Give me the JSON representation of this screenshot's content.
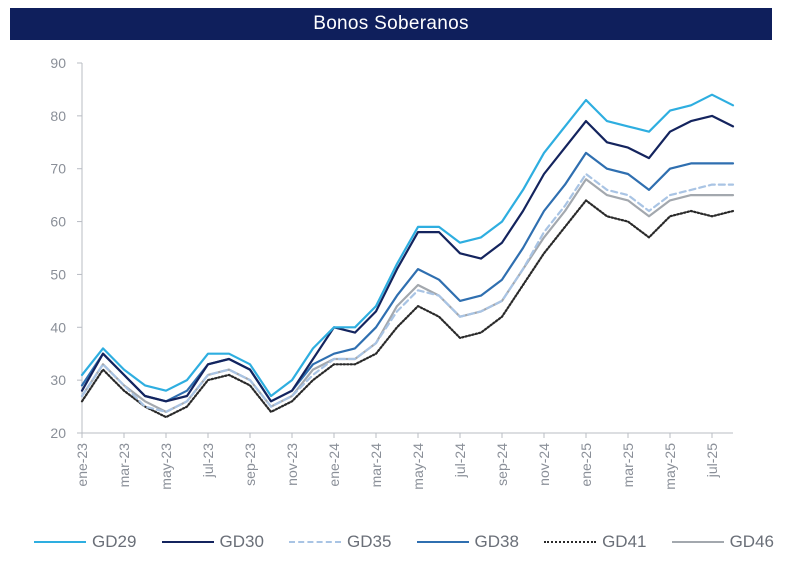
{
  "chart_data": {
    "type": "line",
    "title": "Bonos Soberanos",
    "xlabel": "",
    "ylabel": "",
    "ylim": [
      20,
      90
    ],
    "yticks": [
      20,
      30,
      40,
      50,
      60,
      70,
      80,
      90
    ],
    "xtick_labels": [
      "ene-23",
      "mar-23",
      "may-23",
      "jul-23",
      "sep-23",
      "nov-23",
      "ene-24",
      "mar-24",
      "may-24",
      "jul-24",
      "sep-24",
      "nov-24",
      "ene-25",
      "mar-25",
      "may-25",
      "jul-25"
    ],
    "x_range": [
      "2023-01",
      "2025-08"
    ],
    "grid": false,
    "legend": "bottom",
    "series": [
      {
        "name": "GD29",
        "color": "#2eaee0",
        "dash": "solid",
        "points": [
          [
            "2023-01",
            31
          ],
          [
            "2023-02",
            36
          ],
          [
            "2023-03",
            32
          ],
          [
            "2023-04",
            29
          ],
          [
            "2023-05",
            28
          ],
          [
            "2023-06",
            30
          ],
          [
            "2023-07",
            35
          ],
          [
            "2023-08",
            35
          ],
          [
            "2023-09",
            33
          ],
          [
            "2023-10",
            27
          ],
          [
            "2023-11",
            30
          ],
          [
            "2023-12",
            36
          ],
          [
            "2024-01",
            40
          ],
          [
            "2024-02",
            40
          ],
          [
            "2024-03",
            44
          ],
          [
            "2024-04",
            52
          ],
          [
            "2024-05",
            59
          ],
          [
            "2024-06",
            59
          ],
          [
            "2024-07",
            56
          ],
          [
            "2024-08",
            57
          ],
          [
            "2024-09",
            60
          ],
          [
            "2024-10",
            66
          ],
          [
            "2024-11",
            73
          ],
          [
            "2024-12",
            78
          ],
          [
            "2025-01",
            83
          ],
          [
            "2025-02",
            79
          ],
          [
            "2025-03",
            78
          ],
          [
            "2025-04",
            77
          ],
          [
            "2025-05",
            81
          ],
          [
            "2025-06",
            82
          ],
          [
            "2025-07",
            84
          ],
          [
            "2025-08",
            82
          ]
        ]
      },
      {
        "name": "GD30",
        "color": "#14245e",
        "dash": "solid",
        "points": [
          [
            "2023-01",
            28
          ],
          [
            "2023-02",
            35
          ],
          [
            "2023-03",
            31
          ],
          [
            "2023-04",
            27
          ],
          [
            "2023-05",
            26
          ],
          [
            "2023-06",
            27
          ],
          [
            "2023-07",
            33
          ],
          [
            "2023-08",
            34
          ],
          [
            "2023-09",
            32
          ],
          [
            "2023-10",
            26
          ],
          [
            "2023-11",
            28
          ],
          [
            "2023-12",
            34
          ],
          [
            "2024-01",
            40
          ],
          [
            "2024-02",
            39
          ],
          [
            "2024-03",
            43
          ],
          [
            "2024-04",
            51
          ],
          [
            "2024-05",
            58
          ],
          [
            "2024-06",
            58
          ],
          [
            "2024-07",
            54
          ],
          [
            "2024-08",
            53
          ],
          [
            "2024-09",
            56
          ],
          [
            "2024-10",
            62
          ],
          [
            "2024-11",
            69
          ],
          [
            "2024-12",
            74
          ],
          [
            "2025-01",
            79
          ],
          [
            "2025-02",
            75
          ],
          [
            "2025-03",
            74
          ],
          [
            "2025-04",
            72
          ],
          [
            "2025-05",
            77
          ],
          [
            "2025-06",
            79
          ],
          [
            "2025-07",
            80
          ],
          [
            "2025-08",
            78
          ]
        ]
      },
      {
        "name": "GD35",
        "color": "#a9c4e4",
        "dash": "dashed",
        "points": [
          [
            "2023-01",
            27
          ],
          [
            "2023-02",
            33
          ],
          [
            "2023-03",
            29
          ],
          [
            "2023-04",
            25
          ],
          [
            "2023-05",
            24
          ],
          [
            "2023-06",
            26
          ],
          [
            "2023-07",
            31
          ],
          [
            "2023-08",
            32
          ],
          [
            "2023-09",
            30
          ],
          [
            "2023-10",
            25
          ],
          [
            "2023-11",
            27
          ],
          [
            "2023-12",
            31
          ],
          [
            "2024-01",
            34
          ],
          [
            "2024-02",
            34
          ],
          [
            "2024-03",
            37
          ],
          [
            "2024-04",
            43
          ],
          [
            "2024-05",
            47
          ],
          [
            "2024-06",
            46
          ],
          [
            "2024-07",
            42
          ],
          [
            "2024-08",
            43
          ],
          [
            "2024-09",
            45
          ],
          [
            "2024-10",
            51
          ],
          [
            "2024-11",
            58
          ],
          [
            "2024-12",
            63
          ],
          [
            "2025-01",
            69
          ],
          [
            "2025-02",
            66
          ],
          [
            "2025-03",
            65
          ],
          [
            "2025-04",
            62
          ],
          [
            "2025-05",
            65
          ],
          [
            "2025-06",
            66
          ],
          [
            "2025-07",
            67
          ],
          [
            "2025-08",
            67
          ]
        ]
      },
      {
        "name": "GD38",
        "color": "#2f6fb0",
        "dash": "solid",
        "points": [
          [
            "2023-01",
            29
          ],
          [
            "2023-02",
            35
          ],
          [
            "2023-03",
            31
          ],
          [
            "2023-04",
            27
          ],
          [
            "2023-05",
            26
          ],
          [
            "2023-06",
            28
          ],
          [
            "2023-07",
            33
          ],
          [
            "2023-08",
            34
          ],
          [
            "2023-09",
            32
          ],
          [
            "2023-10",
            26
          ],
          [
            "2023-11",
            28
          ],
          [
            "2023-12",
            33
          ],
          [
            "2024-01",
            35
          ],
          [
            "2024-02",
            36
          ],
          [
            "2024-03",
            40
          ],
          [
            "2024-04",
            46
          ],
          [
            "2024-05",
            51
          ],
          [
            "2024-06",
            49
          ],
          [
            "2024-07",
            45
          ],
          [
            "2024-08",
            46
          ],
          [
            "2024-09",
            49
          ],
          [
            "2024-10",
            55
          ],
          [
            "2024-11",
            62
          ],
          [
            "2024-12",
            67
          ],
          [
            "2025-01",
            73
          ],
          [
            "2025-02",
            70
          ],
          [
            "2025-03",
            69
          ],
          [
            "2025-04",
            66
          ],
          [
            "2025-05",
            70
          ],
          [
            "2025-06",
            71
          ],
          [
            "2025-07",
            71
          ],
          [
            "2025-08",
            71
          ]
        ]
      },
      {
        "name": "GD41",
        "color": "#2a2a2a",
        "dash": "dotted",
        "points": [
          [
            "2023-01",
            26
          ],
          [
            "2023-02",
            32
          ],
          [
            "2023-03",
            28
          ],
          [
            "2023-04",
            25
          ],
          [
            "2023-05",
            23
          ],
          [
            "2023-06",
            25
          ],
          [
            "2023-07",
            30
          ],
          [
            "2023-08",
            31
          ],
          [
            "2023-09",
            29
          ],
          [
            "2023-10",
            24
          ],
          [
            "2023-11",
            26
          ],
          [
            "2023-12",
            30
          ],
          [
            "2024-01",
            33
          ],
          [
            "2024-02",
            33
          ],
          [
            "2024-03",
            35
          ],
          [
            "2024-04",
            40
          ],
          [
            "2024-05",
            44
          ],
          [
            "2024-06",
            42
          ],
          [
            "2024-07",
            38
          ],
          [
            "2024-08",
            39
          ],
          [
            "2024-09",
            42
          ],
          [
            "2024-10",
            48
          ],
          [
            "2024-11",
            54
          ],
          [
            "2024-12",
            59
          ],
          [
            "2025-01",
            64
          ],
          [
            "2025-02",
            61
          ],
          [
            "2025-03",
            60
          ],
          [
            "2025-04",
            57
          ],
          [
            "2025-05",
            61
          ],
          [
            "2025-06",
            62
          ],
          [
            "2025-07",
            61
          ],
          [
            "2025-08",
            62
          ]
        ]
      },
      {
        "name": "GD46",
        "color": "#a3a8ae",
        "dash": "solid",
        "points": [
          [
            "2023-01",
            27
          ],
          [
            "2023-02",
            33
          ],
          [
            "2023-03",
            29
          ],
          [
            "2023-04",
            26
          ],
          [
            "2023-05",
            24
          ],
          [
            "2023-06",
            26
          ],
          [
            "2023-07",
            31
          ],
          [
            "2023-08",
            32
          ],
          [
            "2023-09",
            30
          ],
          [
            "2023-10",
            25
          ],
          [
            "2023-11",
            27
          ],
          [
            "2023-12",
            32
          ],
          [
            "2024-01",
            34
          ],
          [
            "2024-02",
            34
          ],
          [
            "2024-03",
            37
          ],
          [
            "2024-04",
            44
          ],
          [
            "2024-05",
            48
          ],
          [
            "2024-06",
            46
          ],
          [
            "2024-07",
            42
          ],
          [
            "2024-08",
            43
          ],
          [
            "2024-09",
            45
          ],
          [
            "2024-10",
            51
          ],
          [
            "2024-11",
            57
          ],
          [
            "2024-12",
            62
          ],
          [
            "2025-01",
            68
          ],
          [
            "2025-02",
            65
          ],
          [
            "2025-03",
            64
          ],
          [
            "2025-04",
            61
          ],
          [
            "2025-05",
            64
          ],
          [
            "2025-06",
            65
          ],
          [
            "2025-07",
            65
          ],
          [
            "2025-08",
            65
          ]
        ]
      }
    ]
  }
}
